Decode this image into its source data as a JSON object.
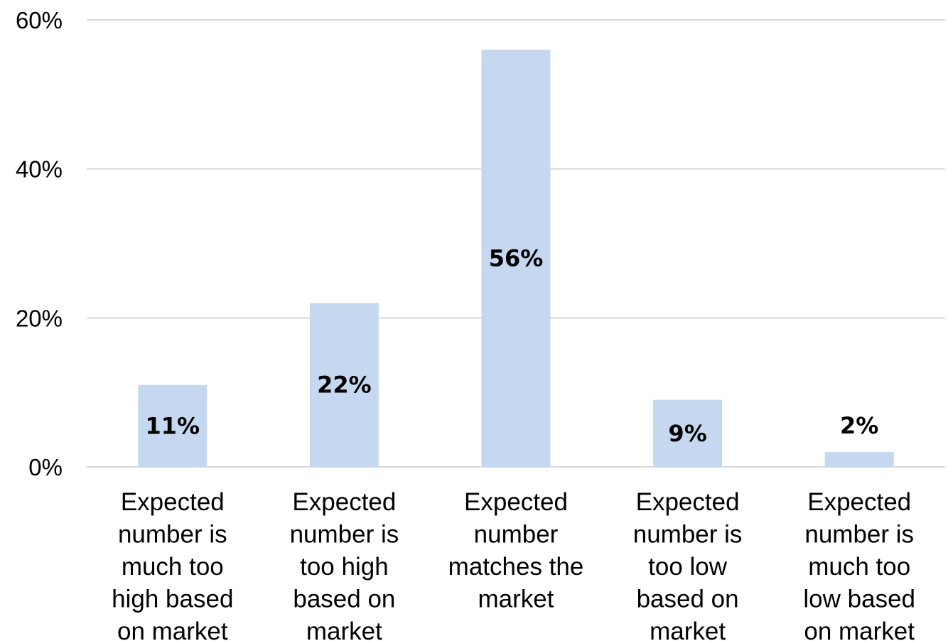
{
  "chart_data": {
    "type": "bar",
    "categories": [
      [
        "Expected",
        "number is",
        "much too",
        "high based",
        "on market"
      ],
      [
        "Expected",
        "number is",
        "too high",
        "based on",
        "market"
      ],
      [
        "Expected",
        "number",
        "matches the",
        "market"
      ],
      [
        "Expected",
        "number is",
        "too low",
        "based on",
        "market"
      ],
      [
        "Expected",
        "number is",
        "much too",
        "low based",
        "on market"
      ]
    ],
    "values": [
      11,
      22,
      56,
      9,
      2
    ],
    "data_labels": [
      "11%",
      "22%",
      "56%",
      "9%",
      "2%"
    ],
    "title": "",
    "xlabel": "",
    "ylabel": "",
    "ylim": [
      0,
      60
    ],
    "yticks": [
      0,
      20,
      40,
      60
    ],
    "ytick_labels": [
      "0%",
      "20%",
      "40%",
      "60%"
    ],
    "grid": true,
    "legend": "none",
    "colors": {
      "bar": "#c6d8f0",
      "grid": "#d9d9d9",
      "text": "#000000"
    }
  }
}
